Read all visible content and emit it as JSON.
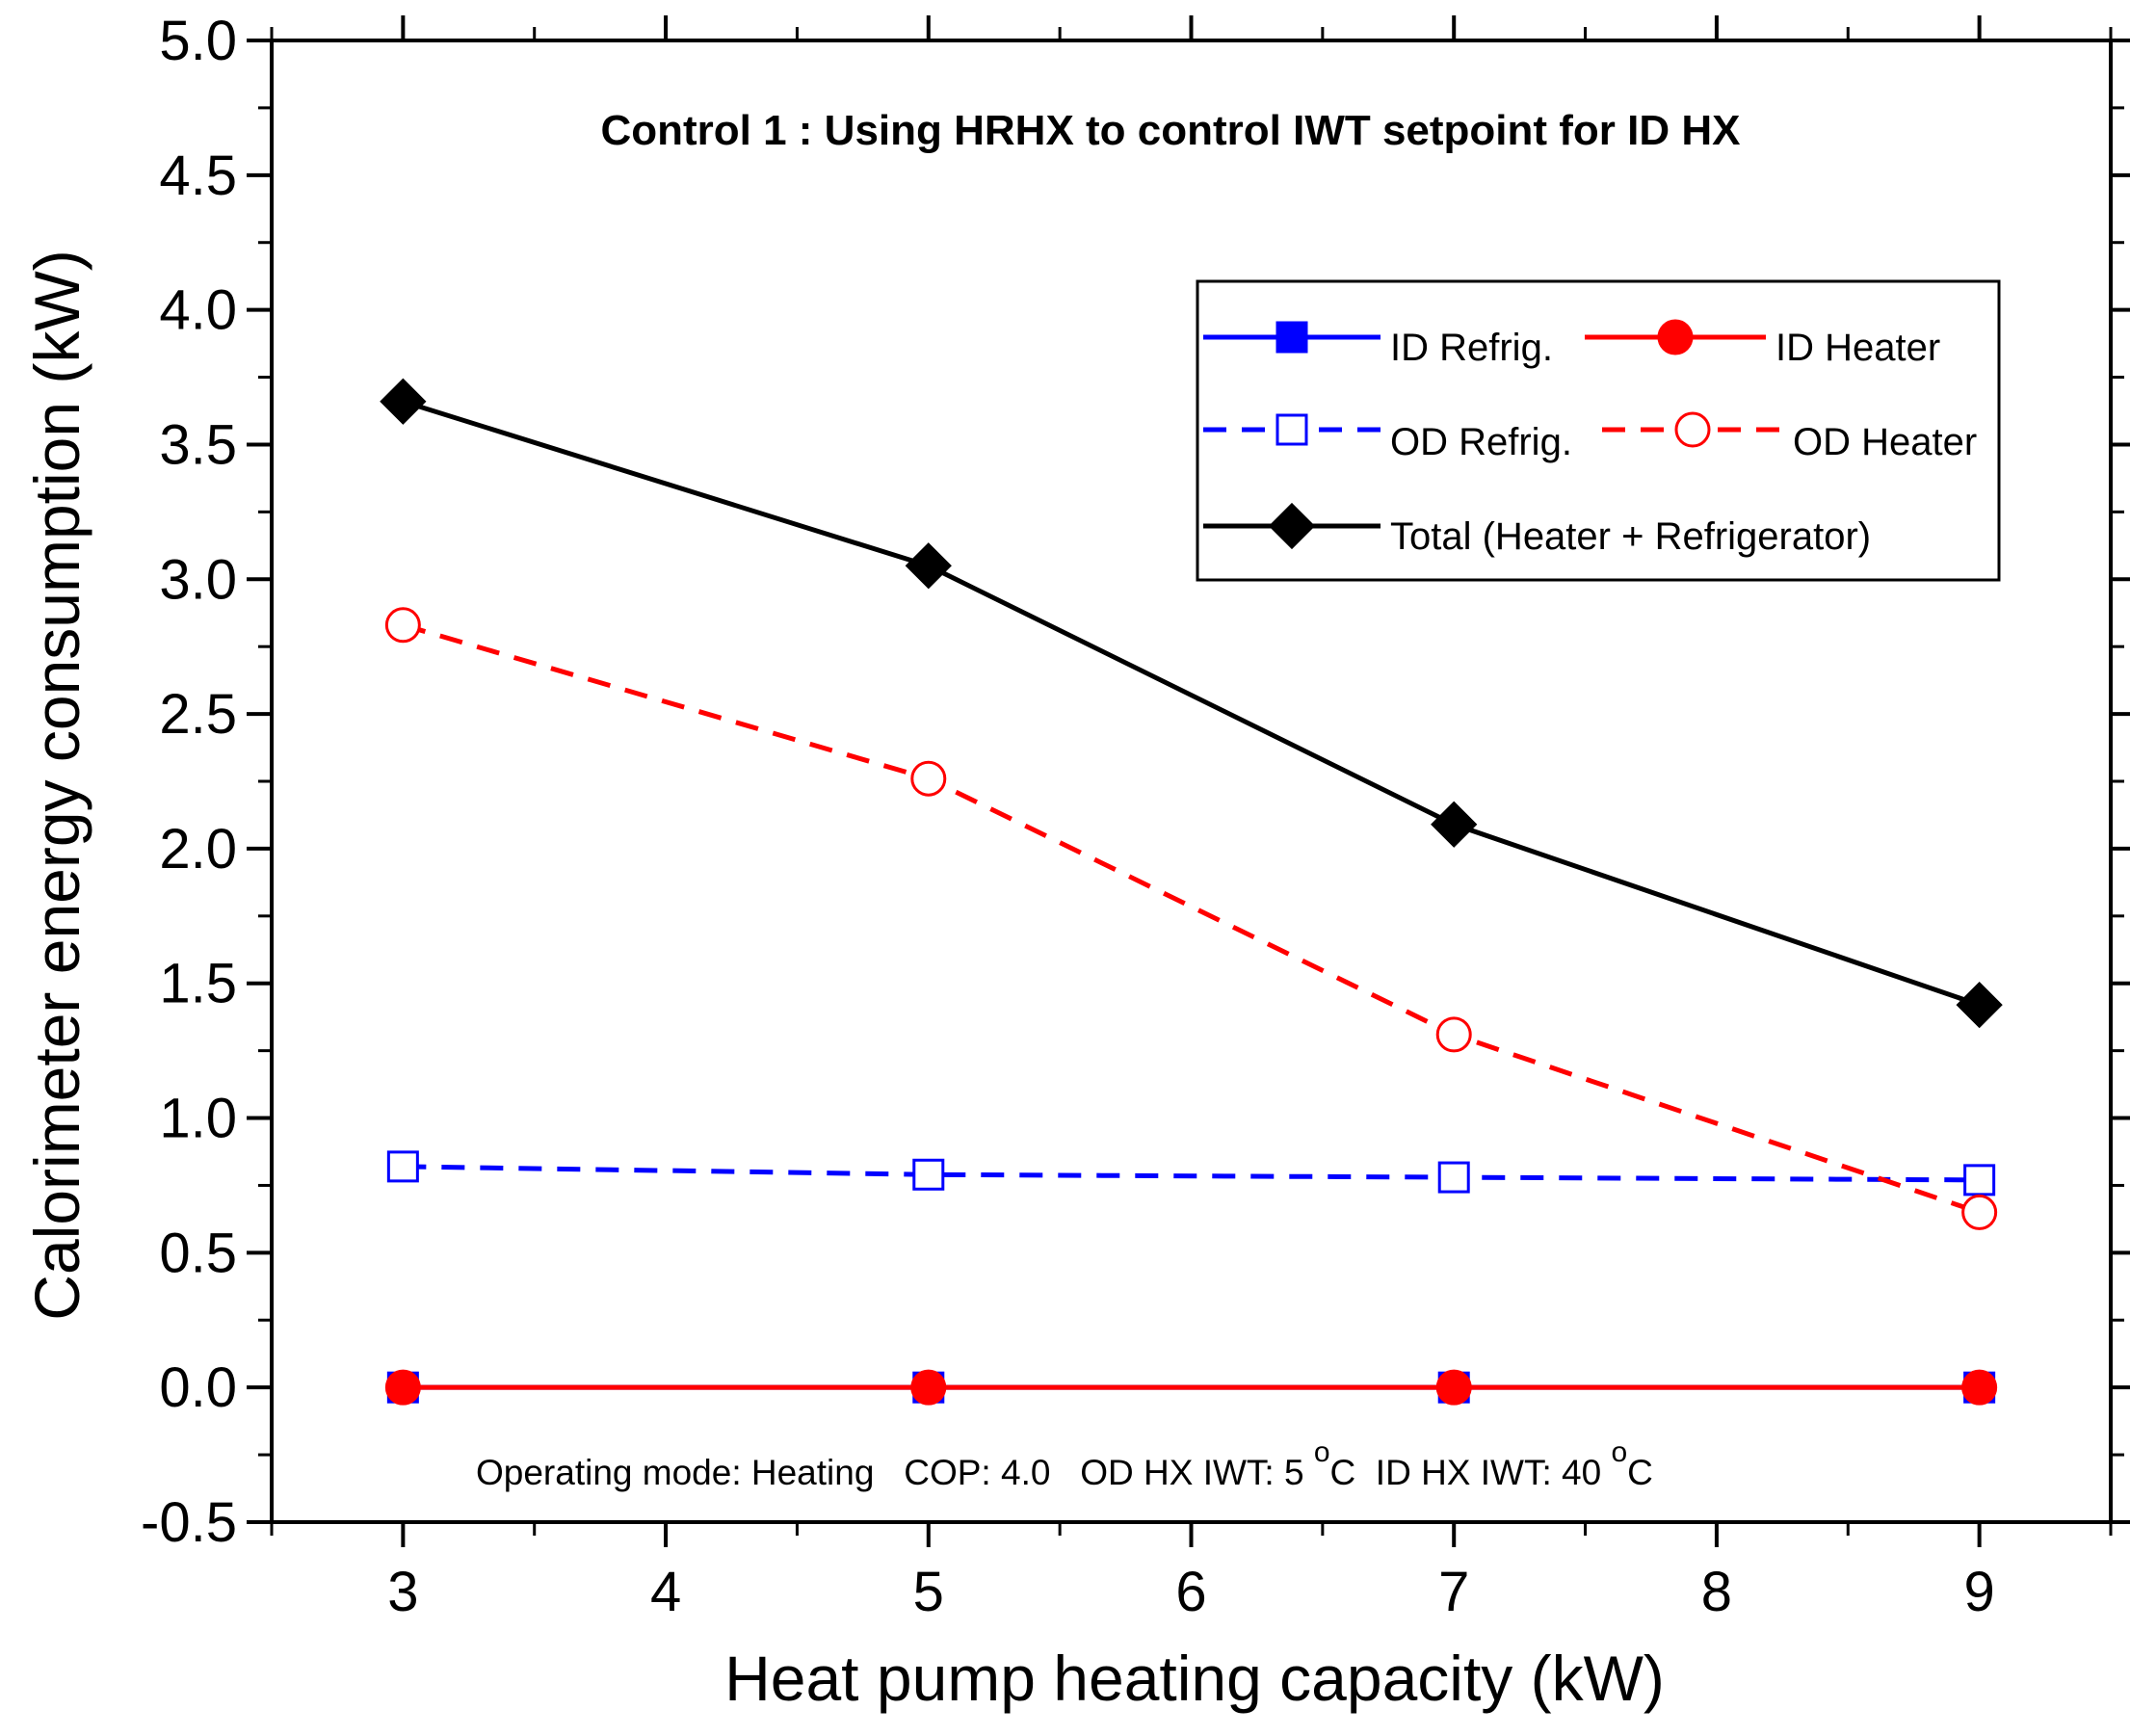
{
  "chart_data": {
    "type": "line",
    "title": "Control 1 : Using HRHX to control IWT setpoint for ID HX",
    "xlabel": "Heat pump heating capacity (kW)",
    "ylabel": "Calorimeter energy consumption (kW)",
    "xlim": [
      2.5,
      9.5
    ],
    "ylim": [
      -0.5,
      5.0
    ],
    "xticks": [
      3,
      4,
      5,
      6,
      7,
      8,
      9
    ],
    "xtick_labels": [
      "3",
      "4",
      "5",
      "6",
      "7",
      "8",
      "9"
    ],
    "yticks": [
      -0.5,
      0.0,
      0.5,
      1.0,
      1.5,
      2.0,
      2.5,
      3.0,
      3.5,
      4.0,
      4.5,
      5.0
    ],
    "ytick_labels": [
      "-0.5",
      "0.0",
      "0.5",
      "1.0",
      "1.5",
      "2.0",
      "2.5",
      "3.0",
      "3.5",
      "4.0",
      "4.5",
      "5.0"
    ],
    "grid": false,
    "legend_position": "top-right",
    "x": [
      3,
      5,
      7,
      9
    ],
    "series": [
      {
        "name": "ID Refrig.",
        "values": [
          0.0,
          0.0,
          0.0,
          0.0
        ],
        "color": "#0000ff",
        "dashed": false,
        "marker": "square-filled"
      },
      {
        "name": "ID Heater",
        "values": [
          0.0,
          0.0,
          0.0,
          0.0
        ],
        "color": "#ff0000",
        "dashed": false,
        "marker": "circle-filled"
      },
      {
        "name": "OD Refrig.",
        "values": [
          0.82,
          0.79,
          0.78,
          0.77
        ],
        "color": "#0000ff",
        "dashed": true,
        "marker": "square-open"
      },
      {
        "name": "OD Heater",
        "values": [
          2.83,
          2.26,
          1.31,
          0.65
        ],
        "color": "#ff0000",
        "dashed": true,
        "marker": "circle-open"
      },
      {
        "name": "Total (Heater + Refrigerator)",
        "values": [
          3.66,
          3.05,
          2.09,
          1.42
        ],
        "color": "#000000",
        "dashed": false,
        "marker": "diamond-filled"
      }
    ],
    "annotation": {
      "text_main": "Operating mode: Heating   COP: 4.0   OD HX IWT: 5 ",
      "sup1": "o",
      "unit1": "C  ID HX IWT: 40 ",
      "sup2": "o",
      "unit2": "C"
    }
  }
}
